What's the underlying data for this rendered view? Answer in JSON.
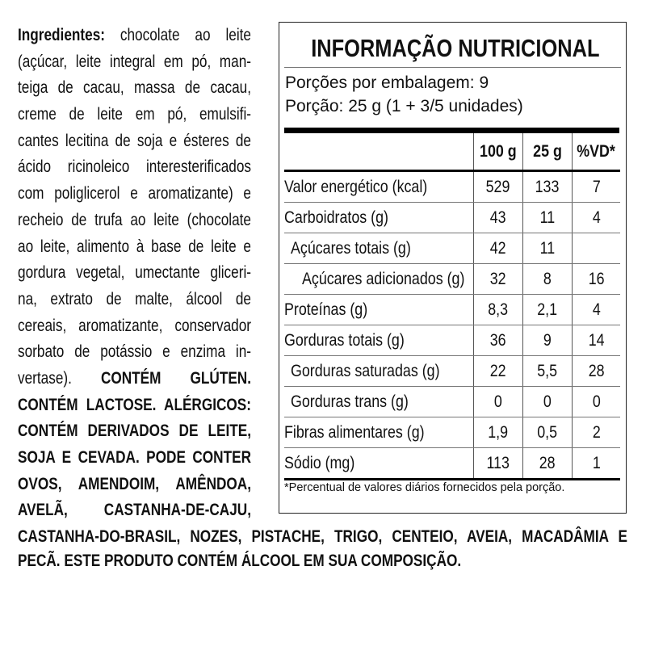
{
  "ingredients": {
    "label": "Ingredientes:",
    "lines": [
      " chocolate ao leite",
      "(açúcar, leite integral em pó, man-",
      "teiga de cacau, massa de cacau,",
      "creme de leite em pó, emulsifi-",
      "cantes lecitina de soja e ésteres de",
      "ácido ricinoleico interesterificados",
      "com poliglicerol e aromatizante) e",
      "recheio de trufa ao leite (chocolate",
      "ao leite, alimento à base de leite e",
      "gordura vegetal, umectante gliceri-",
      "na, extrato de malte, álcool de",
      "cereais, aromatizante, conservador",
      "sorbato de potássio e enzima in-",
      "vertase). "
    ],
    "bold_lines": [
      "CONTÉM GLÚTEN.",
      "CONTÉM LACTOSE. ALÉRGICOS:",
      "CONTÉM DERIVADOS DE LEITE,",
      "SOJA E CEVADA. PODE CONTER",
      "OVOS, AMENDOIM, AMÊNDOA,",
      "AVELÃ, CASTANHA-DE-CAJU,",
      "CASTANHA-DO-BRASIL, NOZES, PISTACHE, TRIGO, CENTEIO, AVEIA, MACADÂMIA E",
      "PECÃ. ESTE PRODUTO CONTÉM ÁLCOOL EM SUA COMPOSIÇÃO."
    ]
  },
  "nutrition": {
    "title": "INFORMAÇÃO NUTRICIONAL",
    "servings_per_package": "Porções por embalagem: 9",
    "serving_size": "Porção: 25 g (1 + 3/5 unidades)",
    "columns": [
      "",
      "100 g",
      "25 g",
      "%VD*"
    ],
    "rows": [
      [
        "Valor energético (kcal)",
        "529",
        "133",
        "7"
      ],
      [
        "Carboidratos (g)",
        "43",
        "11",
        "4"
      ],
      [
        "Açúcares totais (g)",
        "42",
        "11",
        ""
      ],
      [
        "Açúcares adicionados (g)",
        "32",
        "8",
        "16"
      ],
      [
        "Proteínas (g)",
        "8,3",
        "2,1",
        "4"
      ],
      [
        "Gorduras totais (g)",
        "36",
        "9",
        "14"
      ],
      [
        "Gorduras saturadas (g)",
        "22",
        "5,5",
        "28"
      ],
      [
        "Gorduras trans (g)",
        "0",
        "0",
        "0"
      ],
      [
        "Fibras alimentares (g)",
        "1,9",
        "0,5",
        "2"
      ],
      [
        "Sódio (mg)",
        "113",
        "28",
        "1"
      ]
    ],
    "footnote": "*Percentual de valores diários fornecidos pela porção."
  }
}
